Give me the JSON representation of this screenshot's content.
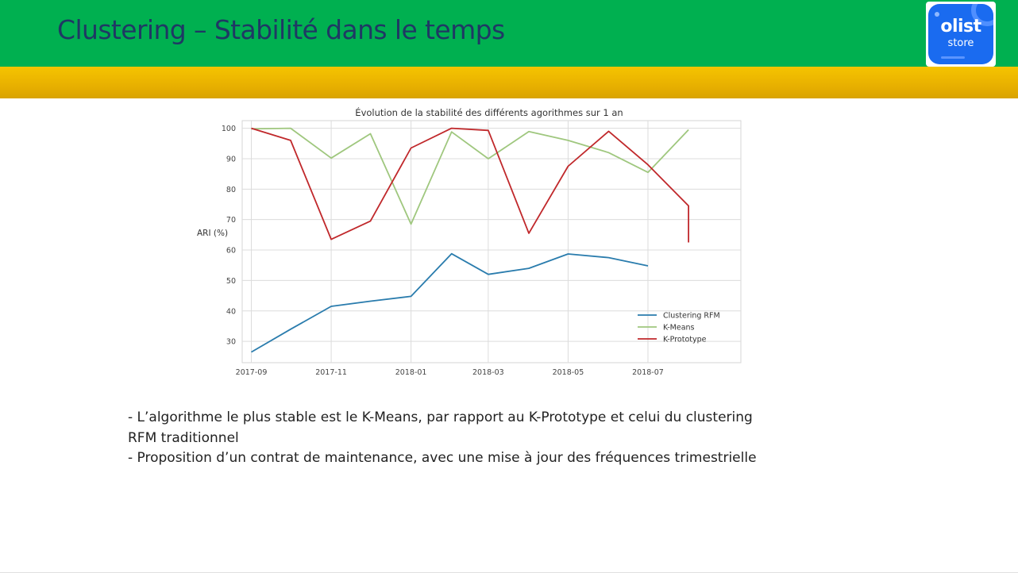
{
  "slide": {
    "title": "Clustering – Stabilité dans le temps",
    "logo": {
      "line1": "olist",
      "line2": "store"
    },
    "bullets": [
      "- L’algorithme le plus stable est le K-Means, par rapport au K-Prototype et celui du clustering RFM traditionnel",
      "- Proposition d’un contrat de maintenance, avec une mise à jour des fréquences trimestrielle"
    ],
    "colors": {
      "header": "#00b050",
      "band": "#f5c400",
      "title": "#1f3864"
    }
  },
  "chart_data": {
    "type": "line",
    "title": "Évolution de la stabilité des différents agorithmes sur 1 an",
    "ylabel": "ARI (%)",
    "xlabel": "",
    "ylim": [
      23,
      102.5
    ],
    "xlim": [
      "2017-08-25",
      "2018-09-10"
    ],
    "x": [
      "2017-09-01",
      "2017-10-01",
      "2017-11-01",
      "2017-12-01",
      "2018-01-01",
      "2018-02-01",
      "2018-03-01",
      "2018-04-01",
      "2018-05-01",
      "2018-06-01",
      "2018-07-01",
      "2018-08-01"
    ],
    "xticks": [
      "2017-09",
      "2017-11",
      "2018-01",
      "2018-03",
      "2018-05",
      "2018-07"
    ],
    "yticks": [
      30,
      40,
      50,
      60,
      70,
      80,
      90,
      100
    ],
    "grid": true,
    "legend_position": "lower-right",
    "series": [
      {
        "name": "Clustering RFM",
        "color": "#2a7cad",
        "x": [
          "2017-09-01",
          "2017-10-01",
          "2017-11-01",
          "2017-12-01",
          "2018-01-01",
          "2018-02-01",
          "2018-03-01",
          "2018-04-01",
          "2018-05-01",
          "2018-06-01",
          "2018-07-01"
        ],
        "values": [
          26.5,
          34,
          41.5,
          43.2,
          44.8,
          58.8,
          52,
          54,
          58.7,
          57.5,
          54.8
        ]
      },
      {
        "name": "K-Means",
        "color": "#9fc77e",
        "x": [
          "2017-09-01",
          "2017-10-01",
          "2017-11-01",
          "2017-12-01",
          "2018-01-01",
          "2018-02-01",
          "2018-03-01",
          "2018-04-01",
          "2018-05-01",
          "2018-06-01",
          "2018-07-01",
          "2018-08-01"
        ],
        "values": [
          99.8,
          100,
          90.2,
          98.2,
          68.5,
          98.8,
          90,
          98.9,
          96,
          92,
          85.5,
          99.5
        ]
      },
      {
        "name": "K-Prototype",
        "color": "#c0282b",
        "x": [
          "2017-09-01",
          "2017-10-01",
          "2017-11-01",
          "2017-12-01",
          "2018-01-01",
          "2018-02-01",
          "2018-03-01",
          "2018-04-01",
          "2018-05-01",
          "2018-06-01",
          "2018-07-01",
          "2018-08-01",
          "2018-08-01"
        ],
        "values": [
          100,
          96,
          63.5,
          69.5,
          93.5,
          100,
          99.3,
          65.5,
          87.5,
          99,
          88,
          74.5,
          62.5
        ]
      }
    ]
  }
}
